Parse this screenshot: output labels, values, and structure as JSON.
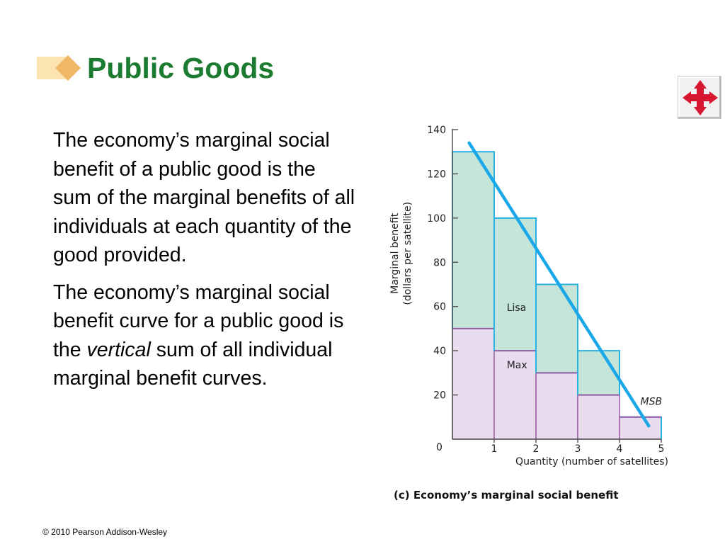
{
  "slide": {
    "title": "Public Goods",
    "paragraph1": "The economy’s marginal social benefit of a public good is the sum of the marginal benefits of all individuals at each quantity of the good provided.",
    "paragraph2_start": "The economy’s marginal social benefit curve for a public good is the ",
    "paragraph2_emph": "vertical",
    "paragraph2_end": " sum of all individual marginal benefit curves.",
    "copyright": "© 2010 Pearson Addison-Wesley",
    "nav_icon": "four-way-arrow-icon"
  },
  "colors": {
    "title": "#1b7b30",
    "lisa_fill": "#c5e5d9",
    "lisa_stroke": "#27b1e3",
    "max_fill": "#e9dcee",
    "max_stroke": "#9b5fa2",
    "msb_line": "#1ba8e8",
    "nav_arrow": "#d7172f"
  },
  "chart_data": {
    "type": "bar",
    "stacked": true,
    "categories": [
      "1",
      "2",
      "3",
      "4",
      "5"
    ],
    "series": [
      {
        "name": "Max",
        "values": [
          50,
          40,
          30,
          20,
          10
        ]
      },
      {
        "name": "Lisa",
        "values": [
          80,
          60,
          40,
          20,
          0
        ]
      }
    ],
    "line": {
      "name": "MSB",
      "points": [
        [
          0.4,
          134
        ],
        [
          4.7,
          6
        ]
      ]
    },
    "ylabel_line1": "Marginal benefit",
    "ylabel_line2": "(dollars per satellite)",
    "xlabel": "Quantity (number of satellites)",
    "origin_label": "0",
    "yticks": [
      20,
      40,
      60,
      80,
      100,
      120,
      140
    ],
    "xticks": [
      1,
      2,
      3,
      4,
      5
    ],
    "xlim": [
      0,
      5
    ],
    "ylim": [
      0,
      140
    ],
    "caption": "(c) Economy’s marginal social benefit"
  }
}
